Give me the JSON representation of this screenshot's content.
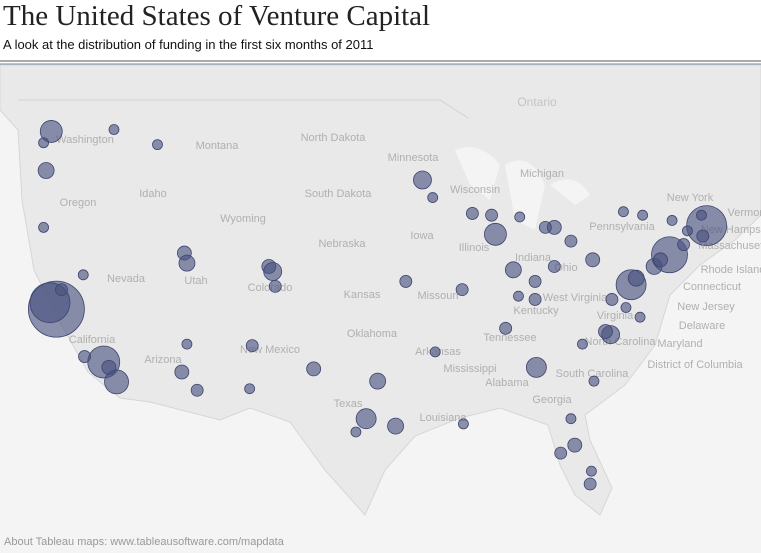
{
  "header": {
    "title": "The United States of Venture Capital",
    "subtitle": "A look at the distribution of funding in the first six months of 2011"
  },
  "map": {
    "labels": [
      "Ontario",
      "Washington",
      "North Dakota",
      "Montana",
      "Minnesota",
      "South Dakota",
      "Oregon",
      "Idaho",
      "Wyoming",
      "Wisconsin",
      "Michigan",
      "Iowa",
      "Nebraska",
      "Illinois",
      "Indiana",
      "Ohio",
      "Pennsylvania",
      "New York",
      "Vermont",
      "New Hampshire",
      "Massachusetts",
      "Rhode Island",
      "Connecticut",
      "New Jersey",
      "Delaware",
      "Maryland",
      "District of Columbia",
      "Nevada",
      "Utah",
      "Colorado",
      "Kansas",
      "Missouri",
      "West Virginia",
      "Virginia",
      "Kentucky",
      "California",
      "Oklahoma",
      "Arkansas",
      "Tennessee",
      "North Carolina",
      "Arizona",
      "New Mexico",
      "Texas",
      "Mississippi",
      "Alabama",
      "Georgia",
      "South Carolina",
      "Louisiana"
    ],
    "attribution": "About Tableau maps: www.tableausoftware.com/mapdata",
    "points": [
      {
        "lon": -121.9,
        "lat": 37.4,
        "size": 28
      },
      {
        "lon": -122.4,
        "lat": 37.8,
        "size": 20
      },
      {
        "lon": -118.2,
        "lat": 34.05,
        "size": 16
      },
      {
        "lon": -117.2,
        "lat": 32.75,
        "size": 12
      },
      {
        "lon": -117.8,
        "lat": 33.7,
        "size": 7
      },
      {
        "lon": -119.7,
        "lat": 34.4,
        "size": 6
      },
      {
        "lon": -121.5,
        "lat": 38.6,
        "size": 6
      },
      {
        "lon": -122.3,
        "lat": 47.6,
        "size": 11
      },
      {
        "lon": -122.7,
        "lat": 45.5,
        "size": 8
      },
      {
        "lon": -117.4,
        "lat": 47.7,
        "size": 5
      },
      {
        "lon": -122.9,
        "lat": 47.0,
        "size": 5
      },
      {
        "lon": -114.0,
        "lat": 46.9,
        "size": 5
      },
      {
        "lon": -122.9,
        "lat": 42.3,
        "size": 5
      },
      {
        "lon": -111.9,
        "lat": 40.8,
        "size": 7
      },
      {
        "lon": -111.7,
        "lat": 40.2,
        "size": 8
      },
      {
        "lon": -105.3,
        "lat": 40.0,
        "size": 7
      },
      {
        "lon": -105.0,
        "lat": 39.7,
        "size": 9
      },
      {
        "lon": -104.8,
        "lat": 38.8,
        "size": 6
      },
      {
        "lon": -119.8,
        "lat": 39.5,
        "size": 5
      },
      {
        "lon": -112.1,
        "lat": 33.4,
        "size": 7
      },
      {
        "lon": -110.9,
        "lat": 32.2,
        "size": 6
      },
      {
        "lon": -111.7,
        "lat": 35.2,
        "size": 5
      },
      {
        "lon": -106.6,
        "lat": 35.1,
        "size": 6
      },
      {
        "lon": -106.8,
        "lat": 32.3,
        "size": 5
      },
      {
        "lon": -97.7,
        "lat": 30.3,
        "size": 10
      },
      {
        "lon": -96.8,
        "lat": 32.8,
        "size": 8
      },
      {
        "lon": -95.4,
        "lat": 29.8,
        "size": 8
      },
      {
        "lon": -98.5,
        "lat": 29.4,
        "size": 5
      },
      {
        "lon": -101.8,
        "lat": 33.6,
        "size": 7
      },
      {
        "lon": -93.3,
        "lat": 44.98,
        "size": 9
      },
      {
        "lon": -92.5,
        "lat": 44.0,
        "size": 5
      },
      {
        "lon": -89.4,
        "lat": 43.1,
        "size": 6
      },
      {
        "lon": -87.9,
        "lat": 43.0,
        "size": 6
      },
      {
        "lon": -87.6,
        "lat": 41.9,
        "size": 11
      },
      {
        "lon": -86.2,
        "lat": 39.8,
        "size": 8
      },
      {
        "lon": -94.6,
        "lat": 39.1,
        "size": 6
      },
      {
        "lon": -90.2,
        "lat": 38.6,
        "size": 6
      },
      {
        "lon": -83.0,
        "lat": 42.3,
        "size": 7
      },
      {
        "lon": -83.7,
        "lat": 42.3,
        "size": 6
      },
      {
        "lon": -85.7,
        "lat": 42.9,
        "size": 5
      },
      {
        "lon": -84.5,
        "lat": 39.1,
        "size": 6
      },
      {
        "lon": -83.0,
        "lat": 40.0,
        "size": 6
      },
      {
        "lon": -81.7,
        "lat": 41.5,
        "size": 6
      },
      {
        "lon": -85.8,
        "lat": 38.2,
        "size": 5
      },
      {
        "lon": -84.5,
        "lat": 38.0,
        "size": 6
      },
      {
        "lon": -86.8,
        "lat": 36.2,
        "size": 6
      },
      {
        "lon": -84.4,
        "lat": 33.7,
        "size": 10
      },
      {
        "lon": -90.1,
        "lat": 29.95,
        "size": 5
      },
      {
        "lon": -92.3,
        "lat": 34.7,
        "size": 5
      },
      {
        "lon": -80.0,
        "lat": 40.4,
        "size": 7
      },
      {
        "lon": -78.6,
        "lat": 35.8,
        "size": 9
      },
      {
        "lon": -79.0,
        "lat": 36.0,
        "size": 7
      },
      {
        "lon": -80.8,
        "lat": 35.2,
        "size": 5
      },
      {
        "lon": -79.9,
        "lat": 32.8,
        "size": 5
      },
      {
        "lon": -78.5,
        "lat": 38.0,
        "size": 6
      },
      {
        "lon": -77.0,
        "lat": 38.9,
        "size": 15
      },
      {
        "lon": -76.6,
        "lat": 39.3,
        "size": 8
      },
      {
        "lon": -75.2,
        "lat": 40.0,
        "size": 8
      },
      {
        "lon": -77.4,
        "lat": 37.5,
        "size": 5
      },
      {
        "lon": -76.3,
        "lat": 36.9,
        "size": 5
      },
      {
        "lon": -74.0,
        "lat": 40.7,
        "size": 18
      },
      {
        "lon": -74.7,
        "lat": 40.4,
        "size": 7
      },
      {
        "lon": -72.9,
        "lat": 41.3,
        "size": 6
      },
      {
        "lon": -76.1,
        "lat": 43.0,
        "size": 5
      },
      {
        "lon": -77.6,
        "lat": 43.2,
        "size": 5
      },
      {
        "lon": -73.8,
        "lat": 42.7,
        "size": 5
      },
      {
        "lon": -71.1,
        "lat": 42.4,
        "size": 20
      },
      {
        "lon": -71.4,
        "lat": 41.8,
        "size": 6
      },
      {
        "lon": -72.6,
        "lat": 42.1,
        "size": 5
      },
      {
        "lon": -71.5,
        "lat": 43.0,
        "size": 5
      },
      {
        "lon": -80.2,
        "lat": 25.8,
        "size": 6
      },
      {
        "lon": -82.5,
        "lat": 27.95,
        "size": 6
      },
      {
        "lon": -81.4,
        "lat": 28.5,
        "size": 7
      },
      {
        "lon": -80.1,
        "lat": 26.7,
        "size": 5
      },
      {
        "lon": -81.7,
        "lat": 30.3,
        "size": 5
      }
    ]
  }
}
